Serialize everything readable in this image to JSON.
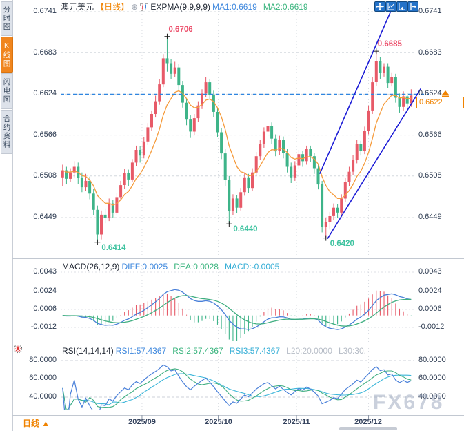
{
  "sidebar": {
    "tabs": [
      {
        "label": "分时图",
        "active": false
      },
      {
        "label": "K线图",
        "active": true
      },
      {
        "label": "闪电图",
        "active": false
      },
      {
        "label": "合约资料",
        "active": false
      }
    ]
  },
  "header": {
    "instrument": "澳元美元",
    "period_tag": "【日线】",
    "indicator_title": "EXPMA(9,9,9,9)",
    "ma1": "MA1:0.6619",
    "ma2": "MA2:0.6619"
  },
  "glyphs": {
    "add": "⊕",
    "triangle_up": "▲"
  },
  "price_axis": {
    "labels": [
      "0.6741",
      "0.6683",
      "0.6624",
      "0.6566",
      "0.6508",
      "0.6449"
    ]
  },
  "current_price": "0.6622",
  "macd_panel": {
    "title": "MACD(26,12,9)",
    "diff_label": "DIFF:0.0025",
    "dea_label": "DEA:0.0028",
    "macd_label": "MACD:-0.0005",
    "axis": [
      "0.0043",
      "0.0024",
      "0.0006",
      "-0.0012"
    ]
  },
  "rsi_panel": {
    "title": "RSI(14,14,14)",
    "rsi1_label": "RSI1:57.4367",
    "rsi2_label": "RSI2:57.4367",
    "rsi3_label": "RSI3:57.4367",
    "l20_label": "L20:20.0000",
    "l30_label": "L30:30.",
    "axis": [
      "80.0000",
      "60.0000",
      "40.0000"
    ]
  },
  "footer": {
    "period": "日线",
    "dates": [
      "2025/09",
      "2025/10",
      "2025/11",
      "2025/12"
    ]
  },
  "watermark": "FX678",
  "chart_data": {
    "type": "candlestick",
    "title": "澳元美元 日线 (AUD/USD Daily)",
    "price_gridlines": [
      0.6741,
      0.6683,
      0.6624,
      0.6566,
      0.6508,
      0.6449
    ],
    "hline_price": 0.6624,
    "last_price": 0.6622,
    "expma_period": 9,
    "macd_params": [
      26,
      12,
      9
    ],
    "macd_gridlines": [
      0.0043,
      0.0024,
      0.0006,
      -0.0012
    ],
    "rsi_params": [
      14,
      14,
      14
    ],
    "rsi_gridlines": [
      80,
      60,
      40
    ],
    "month_ticks": [
      {
        "label": "2025/09",
        "index": 20.5
      },
      {
        "label": "2025/10",
        "index": 40.2
      },
      {
        "label": "2025/11",
        "index": 60.4
      },
      {
        "label": "2025/12",
        "index": 79.0
      }
    ],
    "annotations": [
      {
        "index": 9,
        "price": 0.6414,
        "label": "0.6414",
        "kind": "low"
      },
      {
        "index": 27,
        "price": 0.6706,
        "label": "0.6706",
        "kind": "high"
      },
      {
        "index": 43,
        "price": 0.644,
        "label": "0.6440",
        "kind": "low"
      },
      {
        "index": 68,
        "price": 0.642,
        "label": "0.6420",
        "kind": "low"
      },
      {
        "index": 81,
        "price": 0.6685,
        "label": "0.6685",
        "kind": "high"
      }
    ],
    "trendlines": [
      {
        "i1": 66.4,
        "p1": 0.6511,
        "i2": 85.4,
        "p2": 0.675
      },
      {
        "i1": 68.4,
        "p1": 0.6419,
        "i2": 92.5,
        "p2": 0.6632
      }
    ],
    "colors": {
      "up": "#e75a68",
      "down": "#3eb489",
      "expma": "#f59b3c",
      "diff_line": "#4a80d9",
      "dea_line": "#3fae80",
      "hline": "#2f86e0",
      "trendline": "#1b1bd6",
      "annot_high": "#ec4f6b",
      "annot_low": "#3fc3a0",
      "accent_orange": "#f08300"
    },
    "candles": [
      [
        0.6506,
        0.6524,
        0.6494,
        0.6516
      ],
      [
        0.6516,
        0.6521,
        0.6496,
        0.6504
      ],
      [
        0.6504,
        0.6519,
        0.6499,
        0.6513
      ],
      [
        0.6513,
        0.6529,
        0.6506,
        0.6521
      ],
      [
        0.6521,
        0.6527,
        0.6497,
        0.6505
      ],
      [
        0.6505,
        0.6513,
        0.6485,
        0.6492
      ],
      [
        0.6492,
        0.6511,
        0.6487,
        0.6501
      ],
      [
        0.6501,
        0.6507,
        0.6475,
        0.6483
      ],
      [
        0.6483,
        0.649,
        0.6452,
        0.646
      ],
      [
        0.646,
        0.6466,
        0.6414,
        0.6425
      ],
      [
        0.6425,
        0.6459,
        0.6418,
        0.6453
      ],
      [
        0.6453,
        0.6462,
        0.6441,
        0.6448
      ],
      [
        0.6448,
        0.6476,
        0.6444,
        0.6469
      ],
      [
        0.6469,
        0.6474,
        0.6449,
        0.6456
      ],
      [
        0.6456,
        0.6484,
        0.6452,
        0.6478
      ],
      [
        0.6478,
        0.6501,
        0.6473,
        0.6495
      ],
      [
        0.6495,
        0.6518,
        0.649,
        0.6512
      ],
      [
        0.6512,
        0.6517,
        0.6494,
        0.6503
      ],
      [
        0.6503,
        0.6532,
        0.6499,
        0.6527
      ],
      [
        0.6527,
        0.6551,
        0.6522,
        0.6545
      ],
      [
        0.6545,
        0.655,
        0.6527,
        0.6537
      ],
      [
        0.6537,
        0.6563,
        0.6533,
        0.6557
      ],
      [
        0.6557,
        0.6583,
        0.6552,
        0.6577
      ],
      [
        0.6577,
        0.6601,
        0.6572,
        0.6596
      ],
      [
        0.6596,
        0.6622,
        0.6591,
        0.6614
      ],
      [
        0.6614,
        0.6645,
        0.6609,
        0.6638
      ],
      [
        0.6638,
        0.6681,
        0.6634,
        0.6675
      ],
      [
        0.6675,
        0.6706,
        0.6656,
        0.6668
      ],
      [
        0.6668,
        0.6674,
        0.6645,
        0.6653
      ],
      [
        0.6653,
        0.667,
        0.6648,
        0.6662
      ],
      [
        0.6662,
        0.6667,
        0.663,
        0.6637
      ],
      [
        0.6637,
        0.6643,
        0.6605,
        0.6612
      ],
      [
        0.6612,
        0.6618,
        0.658,
        0.6588
      ],
      [
        0.6588,
        0.6594,
        0.6562,
        0.6571
      ],
      [
        0.6571,
        0.6596,
        0.6566,
        0.659
      ],
      [
        0.659,
        0.6614,
        0.6585,
        0.6608
      ],
      [
        0.6608,
        0.6631,
        0.6603,
        0.6625
      ],
      [
        0.6625,
        0.6648,
        0.662,
        0.6641
      ],
      [
        0.6641,
        0.6646,
        0.6617,
        0.6623
      ],
      [
        0.6623,
        0.6629,
        0.6592,
        0.6599
      ],
      [
        0.6599,
        0.6605,
        0.6563,
        0.657
      ],
      [
        0.657,
        0.6576,
        0.6532,
        0.654
      ],
      [
        0.654,
        0.6546,
        0.6494,
        0.6502
      ],
      [
        0.6502,
        0.6508,
        0.644,
        0.6458
      ],
      [
        0.6458,
        0.6482,
        0.6452,
        0.6476
      ],
      [
        0.6476,
        0.6481,
        0.6455,
        0.6463
      ],
      [
        0.6463,
        0.6491,
        0.6459,
        0.6485
      ],
      [
        0.6485,
        0.6512,
        0.648,
        0.6506
      ],
      [
        0.6506,
        0.6511,
        0.6484,
        0.6491
      ],
      [
        0.6491,
        0.6519,
        0.6487,
        0.6513
      ],
      [
        0.6513,
        0.6542,
        0.6508,
        0.6536
      ],
      [
        0.6536,
        0.6559,
        0.6531,
        0.6553
      ],
      [
        0.6553,
        0.6577,
        0.6548,
        0.6571
      ],
      [
        0.6571,
        0.6594,
        0.6566,
        0.6579
      ],
      [
        0.6579,
        0.6584,
        0.6553,
        0.6561
      ],
      [
        0.6561,
        0.6567,
        0.6536,
        0.6543
      ],
      [
        0.6543,
        0.6565,
        0.6538,
        0.6559
      ],
      [
        0.6559,
        0.6564,
        0.6533,
        0.6541
      ],
      [
        0.6541,
        0.6547,
        0.6513,
        0.6521
      ],
      [
        0.6521,
        0.6527,
        0.6498,
        0.6506
      ],
      [
        0.6506,
        0.6529,
        0.6501,
        0.6523
      ],
      [
        0.6523,
        0.6545,
        0.6518,
        0.6539
      ],
      [
        0.6539,
        0.6544,
        0.6521,
        0.6529
      ],
      [
        0.6529,
        0.6551,
        0.6524,
        0.6546
      ],
      [
        0.6546,
        0.6551,
        0.6528,
        0.6536
      ],
      [
        0.6536,
        0.6541,
        0.6511,
        0.6519
      ],
      [
        0.6519,
        0.6524,
        0.6489,
        0.6496
      ],
      [
        0.6496,
        0.6501,
        0.6428,
        0.6436
      ],
      [
        0.6436,
        0.6449,
        0.642,
        0.6443
      ],
      [
        0.6443,
        0.6457,
        0.6432,
        0.6451
      ],
      [
        0.6451,
        0.6469,
        0.6446,
        0.6463
      ],
      [
        0.6463,
        0.6468,
        0.6448,
        0.6456
      ],
      [
        0.6456,
        0.6482,
        0.6451,
        0.6476
      ],
      [
        0.6476,
        0.6505,
        0.6471,
        0.6499
      ],
      [
        0.6499,
        0.6521,
        0.6494,
        0.6514
      ],
      [
        0.6514,
        0.6538,
        0.6509,
        0.6531
      ],
      [
        0.6531,
        0.6559,
        0.6526,
        0.6553
      ],
      [
        0.6553,
        0.6558,
        0.6537,
        0.6544
      ],
      [
        0.6544,
        0.6578,
        0.6539,
        0.6572
      ],
      [
        0.6572,
        0.6608,
        0.6567,
        0.6601
      ],
      [
        0.6601,
        0.6648,
        0.6596,
        0.6641
      ],
      [
        0.6641,
        0.6685,
        0.6636,
        0.6671
      ],
      [
        0.6671,
        0.6677,
        0.6646,
        0.6654
      ],
      [
        0.6654,
        0.6668,
        0.6649,
        0.6663
      ],
      [
        0.6663,
        0.6668,
        0.6633,
        0.664
      ],
      [
        0.664,
        0.6655,
        0.6635,
        0.6648
      ],
      [
        0.6648,
        0.6653,
        0.6612,
        0.6619
      ],
      [
        0.6619,
        0.6625,
        0.6598,
        0.6606
      ],
      [
        0.6606,
        0.6628,
        0.6601,
        0.6621
      ],
      [
        0.6621,
        0.6626,
        0.6603,
        0.6611
      ],
      [
        0.6611,
        0.6631,
        0.6606,
        0.6622
      ]
    ]
  }
}
